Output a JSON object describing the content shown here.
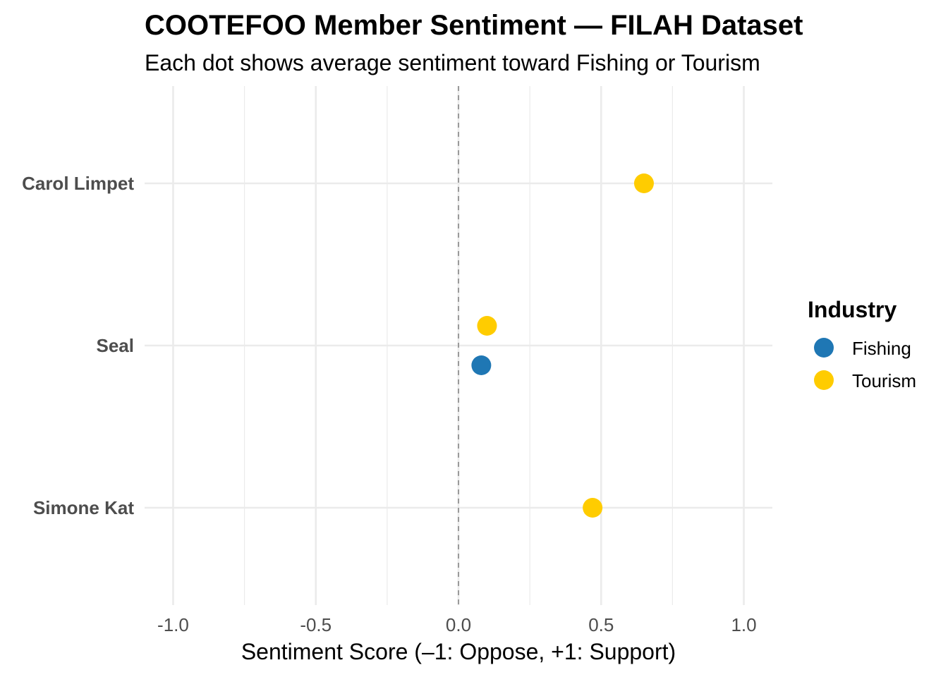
{
  "chart_data": {
    "type": "scatter",
    "title": "COOTEFOO Member Sentiment — FILAH Dataset",
    "subtitle": "Each dot shows average sentiment toward Fishing or Tourism",
    "xlabel": "Sentiment Score (–1: Oppose, +1: Support)",
    "ylabel": "",
    "xlim": [
      -1.1,
      1.1
    ],
    "x_ticks": [
      -1.0,
      -0.5,
      0.0,
      0.5,
      1.0
    ],
    "x_tick_labels": [
      "-1.0",
      "-0.5",
      "0.0",
      "0.5",
      "1.0"
    ],
    "reference_line": 0.0,
    "categories": [
      "Carol Limpet",
      "Seal",
      "Simone Kat"
    ],
    "grid": true,
    "legend": {
      "title": "Industry",
      "position": "right",
      "entries": [
        {
          "name": "Fishing",
          "color": "#1f77b4"
        },
        {
          "name": "Tourism",
          "color": "#ffcc00"
        }
      ]
    },
    "series": [
      {
        "name": "Fishing",
        "color": "#1f77b4",
        "points": [
          {
            "category": "Seal",
            "x": 0.08
          }
        ]
      },
      {
        "name": "Tourism",
        "color": "#ffcc00",
        "points": [
          {
            "category": "Carol Limpet",
            "x": 0.65
          },
          {
            "category": "Seal",
            "x": 0.1
          },
          {
            "category": "Simone Kat",
            "x": 0.47
          }
        ]
      }
    ]
  }
}
